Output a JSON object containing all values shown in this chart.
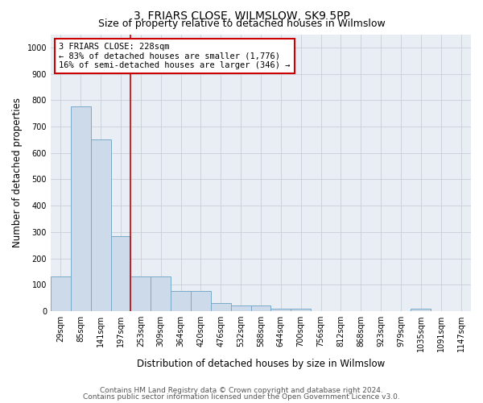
{
  "title": "3, FRIARS CLOSE, WILMSLOW, SK9 5PP",
  "subtitle": "Size of property relative to detached houses in Wilmslow",
  "xlabel": "Distribution of detached houses by size in Wilmslow",
  "ylabel": "Number of detached properties",
  "bins": [
    "29sqm",
    "85sqm",
    "141sqm",
    "197sqm",
    "253sqm",
    "309sqm",
    "364sqm",
    "420sqm",
    "476sqm",
    "532sqm",
    "588sqm",
    "644sqm",
    "700sqm",
    "756sqm",
    "812sqm",
    "868sqm",
    "923sqm",
    "979sqm",
    "1035sqm",
    "1091sqm",
    "1147sqm"
  ],
  "values": [
    130,
    775,
    650,
    285,
    130,
    130,
    75,
    75,
    30,
    20,
    20,
    10,
    10,
    0,
    0,
    0,
    0,
    0,
    10,
    0,
    0
  ],
  "bar_color": "#ccdaea",
  "bar_edge_color": "#7aaac8",
  "vline_x": 3.5,
  "annotation_text": "3 FRIARS CLOSE: 228sqm\n← 83% of detached houses are smaller (1,776)\n16% of semi-detached houses are larger (346) →",
  "annotation_box_color": "white",
  "annotation_box_edge_color": "#cc0000",
  "vline_color": "#cc0000",
  "ylim": [
    0,
    1050
  ],
  "yticks": [
    0,
    100,
    200,
    300,
    400,
    500,
    600,
    700,
    800,
    900,
    1000
  ],
  "grid_color": "#c8d0da",
  "bg_color": "#e8eef4",
  "footer1": "Contains HM Land Registry data © Crown copyright and database right 2024.",
  "footer2": "Contains public sector information licensed under the Open Government Licence v3.0.",
  "title_fontsize": 10,
  "subtitle_fontsize": 9,
  "axis_label_fontsize": 8.5,
  "tick_fontsize": 7,
  "footer_fontsize": 6.5,
  "annotation_fontsize": 7.5
}
